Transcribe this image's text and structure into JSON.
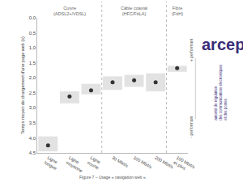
{
  "chart_data": {
    "type": "scatter",
    "y_label": "Temps moyen de chargement d'une page web (s)",
    "caption": "Figure 7 – Usage « navigation web ».",
    "categories": [
      "Ligne\nlongue",
      "Ligne\nmoyenne",
      "Ligne\ncourte",
      "30 Mbit/s",
      "100 Mbit/s",
      "200 Mbit/s",
      "100 Mbit/s\net plus"
    ],
    "values": [
      4.25,
      2.62,
      2.42,
      2.15,
      2.08,
      2.15,
      1.68
    ],
    "range_low": [
      3.95,
      2.45,
      2.2,
      1.95,
      1.9,
      1.85,
      1.6
    ],
    "range_high": [
      4.45,
      2.85,
      2.55,
      2.4,
      2.3,
      2.45,
      1.8
    ],
    "groups": [
      {
        "label": "Cuivre\n(ADSL2+/VDSL)",
        "categories": [
          "Ligne\nlongue",
          "Ligne\nmoyenne",
          "Ligne\ncourte"
        ]
      },
      {
        "label": "Câble coaxial\n(HFC/FttLA)",
        "categories": [
          "30 Mbit/s",
          "100 Mbit/s",
          "200 Mbit/s"
        ]
      },
      {
        "label": "Fibre\n(FttH)",
        "categories": [
          "100 Mbit/s\net plus"
        ]
      }
    ],
    "ylim": [
      4.5,
      0
    ],
    "yticks": [
      {
        "value": 0,
        "label": "0,0"
      },
      {
        "value": 0.5,
        "label": "0,5"
      },
      {
        "value": 1,
        "label": "1,0"
      },
      {
        "value": 1.5,
        "label": "1,5"
      },
      {
        "value": 2,
        "label": "2,0"
      },
      {
        "value": 2.5,
        "label": "2,5"
      },
      {
        "value": 3,
        "label": "3,0"
      },
      {
        "value": 3.5,
        "label": "3,5"
      },
      {
        "value": 4,
        "label": "4,0"
      },
      {
        "value": 4.5,
        "label": "4,5"
      }
    ],
    "grid": false,
    "color": "#333333",
    "marker": "circle",
    "annotations": [
      "+ performant",
      "- performant"
    ],
    "logo": {
      "text": "arcep",
      "subtitle": "autorité de régulation\ndes communications électroniques\net des postes"
    }
  }
}
